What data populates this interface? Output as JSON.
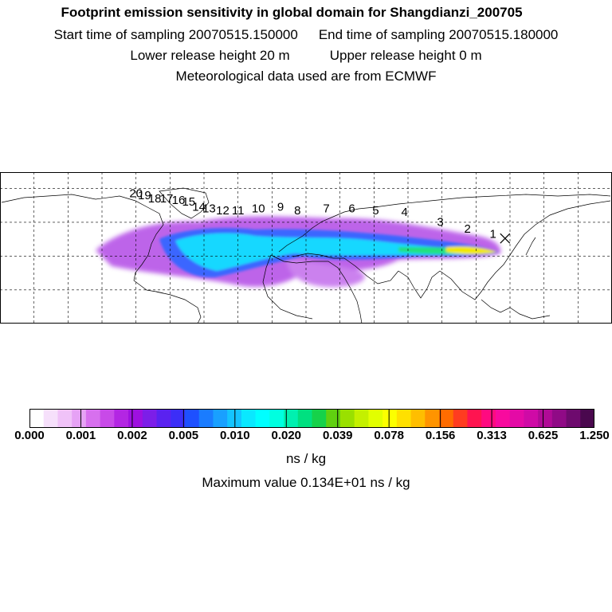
{
  "header": {
    "title": "Footprint emission sensitivity in global domain for Shangdianzi_200705",
    "start_label": "Start time of sampling 20070515.150000",
    "end_label": "End time of sampling 20070515.180000",
    "lower_label": "Lower release height   20 m",
    "upper_label": "Upper release height    0 m",
    "met_label": "Meteorological data used are from ECMWF"
  },
  "map": {
    "projection": "equirectangular",
    "lon_range": [
      -180,
      180
    ],
    "lat_range": [
      -10,
      80
    ],
    "grid_interval_deg": 20,
    "station": {
      "name": "Shangdianzi",
      "lon": 117.1,
      "lat": 40.6
    },
    "trajectory_labels": [
      {
        "label": "1",
        "lon": 110,
        "lat": 41
      },
      {
        "label": "2",
        "lon": 95,
        "lat": 44
      },
      {
        "label": "3",
        "lon": 79,
        "lat": 48
      },
      {
        "label": "4",
        "lon": 58,
        "lat": 54
      },
      {
        "label": "5",
        "lon": 41,
        "lat": 55
      },
      {
        "label": "6",
        "lon": 27,
        "lat": 56
      },
      {
        "label": "7",
        "lon": 12,
        "lat": 56
      },
      {
        "label": "8",
        "lon": -5,
        "lat": 55
      },
      {
        "label": "9",
        "lon": -15,
        "lat": 57
      },
      {
        "label": "10",
        "lon": -28,
        "lat": 56
      },
      {
        "label": "11",
        "lon": -40,
        "lat": 55
      },
      {
        "label": "12",
        "lon": -49,
        "lat": 55
      },
      {
        "label": "13",
        "lon": -57,
        "lat": 56
      },
      {
        "label": "14",
        "lon": -63,
        "lat": 57
      },
      {
        "label": "15",
        "lon": -69,
        "lat": 60
      },
      {
        "label": "16",
        "lon": -75,
        "lat": 61
      },
      {
        "label": "17",
        "lon": -82,
        "lat": 62
      },
      {
        "label": "18",
        "lon": -89,
        "lat": 62
      },
      {
        "label": "19",
        "lon": -95,
        "lat": 64
      },
      {
        "label": "20",
        "lon": -100,
        "lat": 65
      }
    ],
    "colors": {
      "land_outline": "#000000",
      "grid": "#000000"
    }
  },
  "colorbar": {
    "colors": [
      "#ffffff",
      "#f6e0fb",
      "#f0c2f8",
      "#e6a2f5",
      "#d770ee",
      "#c84ae8",
      "#b326e3",
      "#9e10e0",
      "#7c1ee8",
      "#5a22f0",
      "#3c2ef7",
      "#1e50ff",
      "#1a7cff",
      "#19a0ff",
      "#14c4ff",
      "#0ae8ff",
      "#00ffff",
      "#00ffe0",
      "#00f0b0",
      "#00e080",
      "#16d24a",
      "#60d010",
      "#9ae000",
      "#c4f000",
      "#e2ff00",
      "#fcff00",
      "#ffe000",
      "#ffbe00",
      "#ff9400",
      "#ff6c00",
      "#ff3c20",
      "#ff1450",
      "#ff0a80",
      "#f80a9e",
      "#e40aa6",
      "#cf0aa6",
      "#b00a96",
      "#900a86",
      "#6e0a6e",
      "#4a084e"
    ],
    "tick_labels": [
      "0.000",
      "0.001",
      "0.002",
      "0.005",
      "0.010",
      "0.020",
      "0.039",
      "0.078",
      "0.156",
      "0.313",
      "0.625",
      "1.250"
    ],
    "unit": "ns / kg",
    "max_label": "Maximum value  0.134E+01 ns / kg"
  }
}
